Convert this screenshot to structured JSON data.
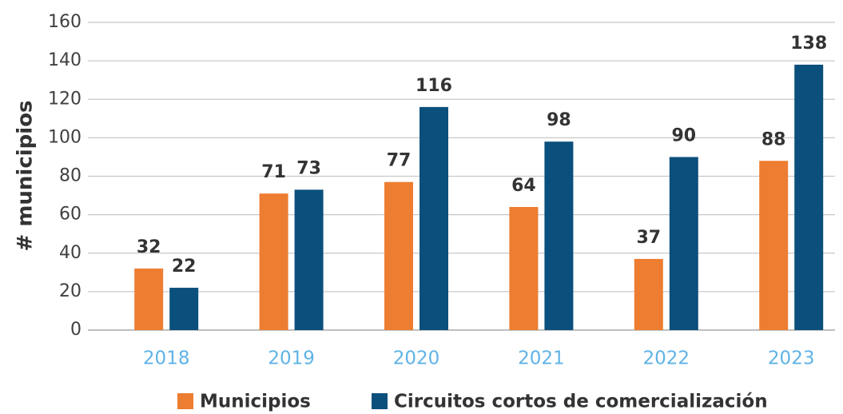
{
  "chart_data": {
    "type": "bar",
    "y_label": "# municipios",
    "categories": [
      "2018",
      "2019",
      "2020",
      "2021",
      "2022",
      "2023"
    ],
    "series": [
      {
        "name": "Municipios",
        "color": "#ed7d31",
        "values": [
          32,
          71,
          77,
          64,
          37,
          88
        ]
      },
      {
        "name": "Circuitos cortos de comercialización",
        "color": "#0b4f7c",
        "values": [
          22,
          73,
          116,
          98,
          90,
          138
        ]
      }
    ],
    "ylim": [
      0,
      160
    ],
    "yticks": [
      0,
      20,
      40,
      60,
      80,
      100,
      120,
      140,
      160
    ],
    "grid": true,
    "legend": "bottom"
  }
}
